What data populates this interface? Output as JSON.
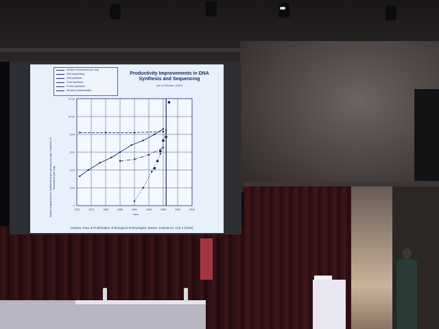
{
  "slide": {
    "title": "Productivity Improvements in DNA Synthesis and Sequencing",
    "subtitle": "(as of October, 2002)",
    "citation": "Carlson, Pace & Proliferation of Biological Technologies, Biosec. & Bioterror. 1(3) 1 (2003)",
    "legend": [
      "Number of transistors per chip",
      "DNA sequencing",
      "DNA synthesis",
      "Gene synthesis",
      "Protein synthesis",
      "Structure determination"
    ],
    "ylabel": "Bases sequenced or synthesized per person per day / Number of transistors per chip",
    "xlabel": "Year"
  },
  "chart_data": {
    "type": "scatter",
    "x_ticks": [
      "1970",
      "1975",
      "1980",
      "1985",
      "1990",
      "1995",
      "2000",
      "2005",
      "2010"
    ],
    "y_ticks": [
      "10^12",
      "10^10",
      "10^8",
      "10^6",
      "10^4",
      "10^2",
      "1"
    ],
    "xlim": [
      1970,
      2010
    ],
    "ylim_log10": [
      0,
      12
    ],
    "grid": true,
    "series": [
      {
        "style": "solid",
        "x": [
          1971,
          1974,
          1978,
          1982,
          1985,
          1989,
          1993,
          1997,
          2000
        ],
        "y_log10": [
          3.3,
          4.0,
          4.8,
          5.4,
          6.0,
          6.8,
          7.3,
          8.0,
          8.6
        ]
      },
      {
        "style": "dashed",
        "x": [
          1971,
          1980,
          1990,
          2000
        ],
        "y_log10": [
          8.2,
          8.2,
          8.2,
          8.3
        ]
      },
      {
        "style": "dash-dot",
        "x": [
          1985,
          1990,
          1995,
          2000
        ],
        "y_log10": [
          5.0,
          5.2,
          5.7,
          6.5
        ]
      },
      {
        "style": "dotted",
        "x": [
          1990,
          1993,
          1996,
          1999,
          2001
        ],
        "y_log10": [
          0.5,
          2.0,
          3.8,
          5.8,
          8.5
        ]
      },
      {
        "style": "markers",
        "x": [
          1997,
          1998,
          1999,
          2000,
          2001,
          2002
        ],
        "y_log10": [
          4.2,
          5.0,
          6.1,
          7.3,
          7.7,
          11.6
        ]
      }
    ],
    "vertical_marker_x": 2001
  }
}
